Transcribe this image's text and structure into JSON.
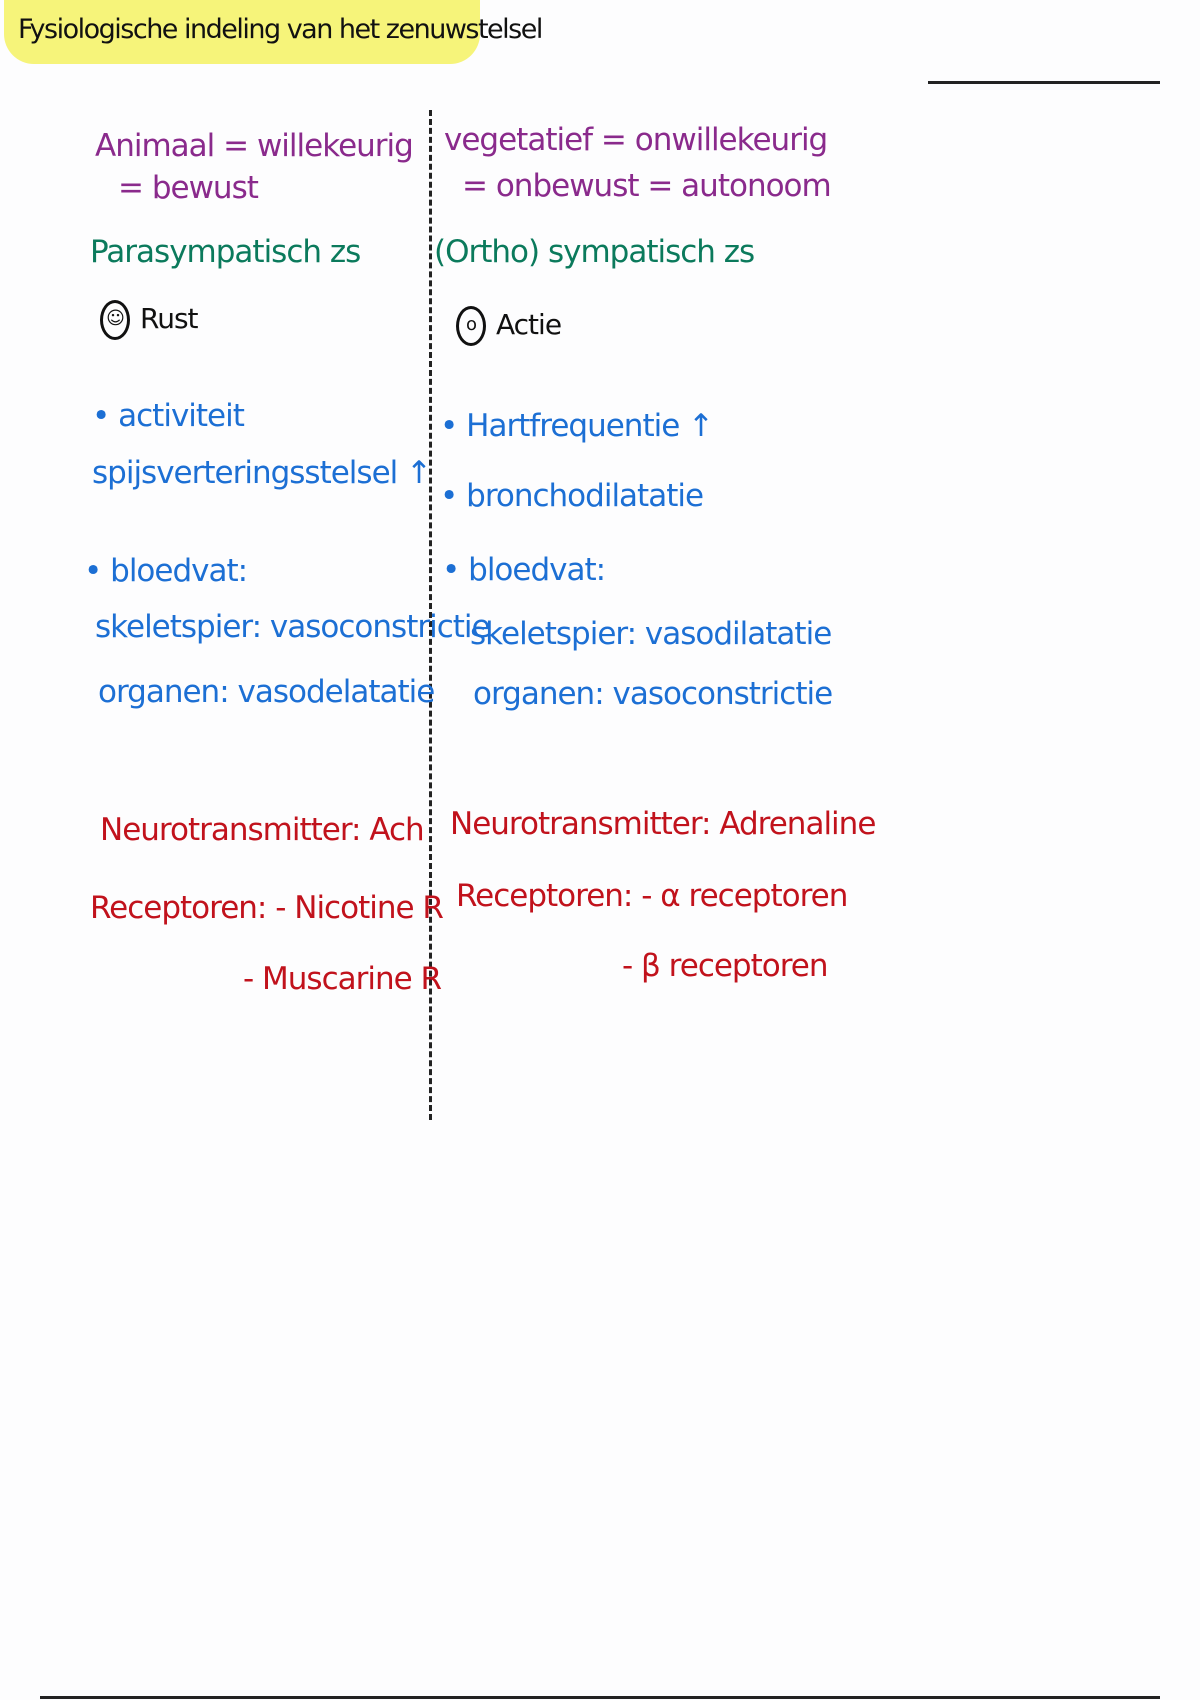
{
  "title": "Fysiologische indeling van het zenuwstelsel",
  "colors": {
    "highlight": "#f6f47a",
    "purple": "#8a2a8c",
    "green": "#0b7a5c",
    "blue": "#1c6fd4",
    "red": "#c1121c"
  },
  "left": {
    "def1": "Animaal = willekeurig",
    "def2": "= bewust",
    "system": "Parasympatisch zs",
    "mood_icon": "smiley-face-icon",
    "mood": "Rust",
    "item1a": "• activiteit",
    "item1b": "spijsverteringsstelsel ↑",
    "item2": "• bloedvat:",
    "item2a": "skeletspier: vasoconstrictie",
    "item2b": "organen: vasodelatatie",
    "neuro": "Neurotransmitter: Ach",
    "rec1": "Receptoren: - Nicotine R",
    "rec2": "- Muscarine R"
  },
  "right": {
    "def1": "vegetatief = onwillekeurig",
    "def2": "= onbewust = autonoom",
    "system": "(Ortho) sympatisch zs",
    "mood_icon": "surprised-face-icon",
    "mood": "Actie",
    "item1": "• Hartfrequentie ↑",
    "item2": "• bronchodilatatie",
    "item3": "• bloedvat:",
    "item3a": "skeletspier: vasodilatatie",
    "item3b": "organen: vasoconstrictie",
    "neuro": "Neurotransmitter: Adrenaline",
    "rec1": "Receptoren: - α receptoren",
    "rec2": "- β receptoren"
  }
}
